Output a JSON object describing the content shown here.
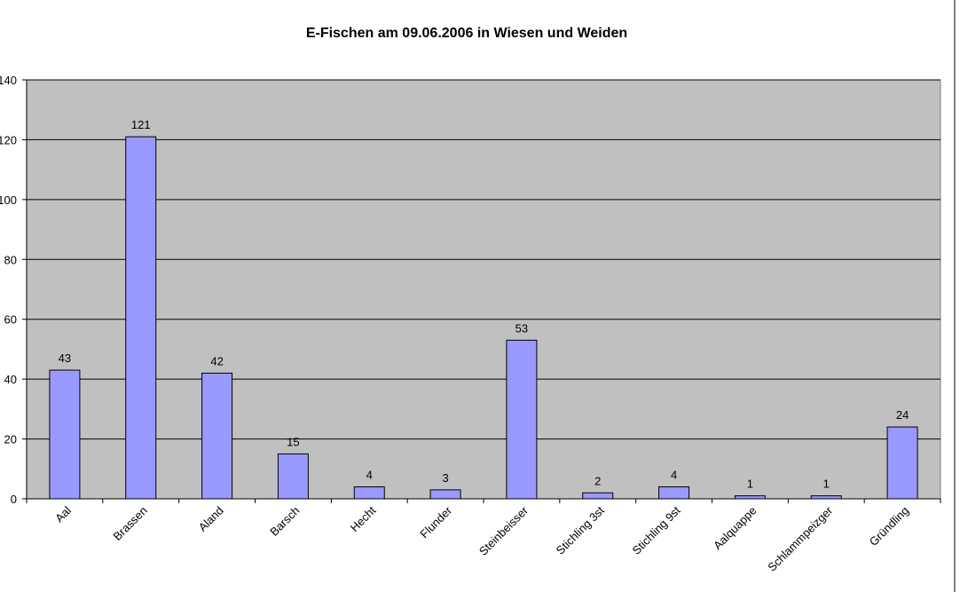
{
  "chart_data": {
    "type": "bar",
    "title": "E-Fischen am 09.06.2006 in Wiesen und Weiden",
    "categories": [
      "Aal",
      "Brassen",
      "Aland",
      "Barsch",
      "Hecht",
      "Flunder",
      "Steinbeisser",
      "Stichling 3st",
      "Stichling 9st",
      "Aalquappe",
      "Schlammpeizger",
      "Gründling"
    ],
    "values": [
      43,
      121,
      42,
      15,
      4,
      3,
      53,
      2,
      4,
      1,
      1,
      24
    ],
    "color": "#9999ff",
    "ylim": [
      0,
      140
    ],
    "yticks": [
      0,
      20,
      40,
      60,
      80,
      100,
      120,
      140
    ],
    "grid": true
  }
}
